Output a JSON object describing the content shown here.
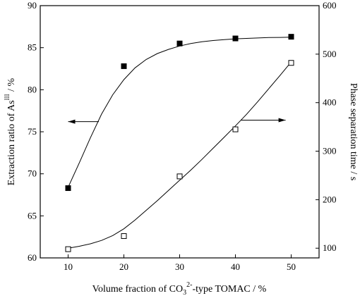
{
  "chart_data": {
    "type": "scatter",
    "x": [
      10,
      20,
      30,
      40,
      50
    ],
    "xlim": [
      5,
      55
    ],
    "xticks": [
      10,
      20,
      30,
      40,
      50
    ],
    "xlabel": {
      "before": "Volume fraction of CO",
      "sub": "3",
      "sup": "2-",
      "after": "-type TOMAC / %"
    },
    "left_axis": {
      "label": {
        "before": "Extraction ratio of As",
        "sup": "III",
        "after": " / %"
      },
      "ylim": [
        60,
        90
      ],
      "ticks": [
        60,
        65,
        70,
        75,
        80,
        85,
        90
      ]
    },
    "right_axis": {
      "label": "Phase separation time  / s",
      "ylim": [
        80,
        600
      ],
      "ticks": [
        100,
        200,
        300,
        400,
        500,
        600
      ]
    },
    "series": [
      {
        "marker": "filled-square",
        "axis": "left",
        "values": [
          68.3,
          82.8,
          85.5,
          86.1,
          86.3
        ],
        "curve_x": [
          10,
          12,
          14,
          16,
          18,
          20,
          22,
          24,
          26,
          28,
          30,
          32,
          34,
          36,
          38,
          40,
          42,
          44,
          46,
          48,
          50
        ],
        "curve_y": [
          68.4,
          71.3,
          74.3,
          77.1,
          79.4,
          81.2,
          82.6,
          83.6,
          84.3,
          84.8,
          85.2,
          85.5,
          85.7,
          85.85,
          85.95,
          86.05,
          86.1,
          86.15,
          86.2,
          86.22,
          86.25
        ]
      },
      {
        "marker": "open-square",
        "axis": "right",
        "values": [
          98,
          125,
          248,
          345,
          482
        ],
        "curve_x": [
          10,
          12,
          14,
          16,
          18,
          20,
          22,
          24,
          26,
          28,
          30,
          32,
          34,
          36,
          38,
          40,
          42,
          44,
          46,
          48,
          50
        ],
        "curve_y": [
          100,
          104,
          109,
          116,
          126,
          140,
          158,
          178,
          198,
          219,
          240,
          261,
          283,
          306,
          329,
          352,
          376,
          402,
          429,
          456,
          484
        ]
      }
    ],
    "annotations": [
      {
        "type": "arrow",
        "direction": "left",
        "target_axis": "left"
      },
      {
        "type": "arrow",
        "direction": "right",
        "target_axis": "right"
      }
    ],
    "colors": {
      "line": "#000000",
      "marker": "#000000",
      "background": "#ffffff"
    }
  }
}
